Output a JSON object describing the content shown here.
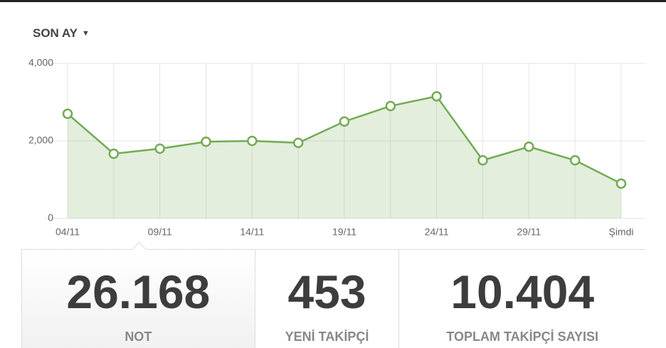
{
  "period_selector": "SON AY",
  "chart_data": {
    "type": "area",
    "categories": [
      "04/11",
      null,
      "09/11",
      null,
      "14/11",
      null,
      "19/11",
      null,
      "24/11",
      null,
      "29/11",
      null,
      "Şimdi"
    ],
    "values": [
      2700,
      1670,
      1800,
      1980,
      2000,
      1950,
      2500,
      2900,
      3150,
      1500,
      1850,
      1500,
      900
    ],
    "color": "#72ab53",
    "ylim": [
      0,
      4000
    ],
    "yticks": [
      0,
      {
        "value": 2000,
        "label": "2,000"
      },
      {
        "value": 4000,
        "label": "4,000"
      }
    ],
    "grid": true
  },
  "stats": [
    {
      "value": "26.168",
      "label": "NOT"
    },
    {
      "value": "453",
      "label": "YENİ TAKİPÇİ"
    },
    {
      "value": "10.404",
      "label": "TOPLAM TAKİPÇİ SAYISI"
    }
  ]
}
